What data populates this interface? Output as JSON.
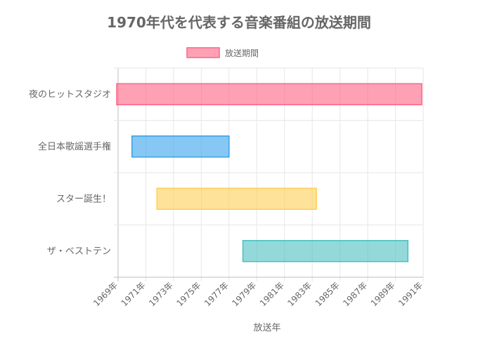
{
  "chart_data": {
    "type": "bar",
    "orientation": "horizontal",
    "title": "1970年代を代表する音楽番組の放送期間",
    "xlabel": "放送年",
    "ylabel": "",
    "legend": {
      "position": "top",
      "label": "放送期間"
    },
    "x_tick_labels": [
      "1969年",
      "1971年",
      "1973年",
      "1975年",
      "1977年",
      "1979年",
      "1981年",
      "1983年",
      "1985年",
      "1987年",
      "1989年",
      "1991年"
    ],
    "xlim": [
      1969,
      1991
    ],
    "grid": true,
    "categories": [
      "夜のヒットスタジオ",
      "全日本歌謡選手権",
      "スター誕生！",
      "ザ・ベストテン"
    ],
    "series": [
      {
        "name": "放送期間",
        "ranges": [
          [
            1968.9,
            1990.9
          ],
          [
            1970.0,
            1977.0
          ],
          [
            1971.8,
            1983.3
          ],
          [
            1978.0,
            1989.9
          ]
        ]
      }
    ],
    "colors": {
      "fills": [
        "rgba(255,99,132,0.6)",
        "rgba(54,162,235,0.6)",
        "rgba(255,206,86,0.6)",
        "rgba(75,192,192,0.6)"
      ],
      "strokes": [
        "#ff6384",
        "#36a2eb",
        "#ffce56",
        "#4bc0c0"
      ],
      "legend_fill": "rgba(255,99,132,0.6)",
      "legend_stroke": "#ff6384",
      "grid": "#e6e6e6",
      "axis": "#bdbdbd",
      "text": "#666666"
    }
  }
}
